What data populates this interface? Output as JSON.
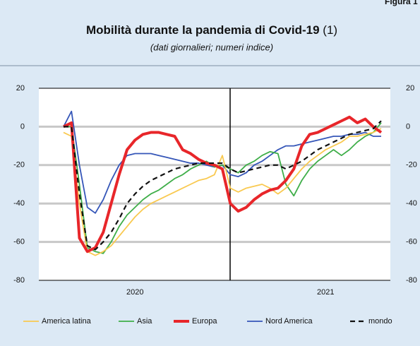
{
  "header": {
    "figure": "Figura 1"
  },
  "chart_data": {
    "type": "line",
    "title": "Mobilità durante la pandemia di Covid-19",
    "title_note": "(1)",
    "subtitle": "(dati giornalieri; numeri indice)",
    "categories": [
      null,
      null,
      null,
      null,
      null,
      null,
      null,
      null,
      null,
      "2020",
      null,
      null,
      null,
      null,
      null,
      null,
      null,
      null,
      null,
      null,
      null,
      null,
      null,
      null,
      null,
      null,
      null,
      null,
      null,
      null,
      null,
      null,
      null,
      "2021",
      null,
      null,
      null,
      null,
      null,
      null,
      null
    ],
    "ylim": [
      -80,
      20
    ],
    "yticks": [
      20,
      0,
      -20,
      -40,
      -60,
      -80
    ],
    "grid": true,
    "series": [
      {
        "name": "America latina",
        "color": "#f9c950",
        "values": [
          -3,
          -5,
          -40,
          -65,
          -67,
          -65,
          -62,
          -57,
          -52,
          -47,
          -43,
          -40,
          -38,
          -36,
          -34,
          -32,
          -30,
          -28,
          -27,
          -25,
          -15,
          -32,
          -34,
          -32,
          -31,
          -30,
          -32,
          -35,
          -32,
          -27,
          -22,
          -18,
          -15,
          -12,
          -10,
          -8,
          -5,
          -5,
          -4,
          -3,
          -1
        ]
      },
      {
        "name": "Asia",
        "color": "#3fae49",
        "values": [
          0,
          0,
          -30,
          -63,
          -65,
          -66,
          -60,
          -52,
          -46,
          -42,
          -38,
          -35,
          -33,
          -30,
          -27,
          -25,
          -22,
          -20,
          -18,
          -21,
          -20,
          -22,
          -24,
          -20,
          -18,
          -15,
          -13,
          -14,
          -30,
          -36,
          -28,
          -22,
          -18,
          -15,
          -12,
          -15,
          -12,
          -8,
          -5,
          -3,
          2
        ]
      },
      {
        "name": "Europa",
        "color": "#e8262a",
        "values": [
          0,
          2,
          -58,
          -65,
          -63,
          -55,
          -40,
          -25,
          -12,
          -7,
          -4,
          -3,
          -3,
          -4,
          -5,
          -12,
          -14,
          -17,
          -19,
          -20,
          -22,
          -40,
          -44,
          -42,
          -38,
          -35,
          -33,
          -32,
          -28,
          -22,
          -10,
          -4,
          -3,
          -1,
          1,
          3,
          5,
          2,
          4,
          0,
          -3
        ]
      },
      {
        "name": "Nord America",
        "color": "#3556b8",
        "values": [
          0,
          8,
          -20,
          -42,
          -45,
          -38,
          -28,
          -20,
          -15,
          -14,
          -14,
          -14,
          -15,
          -16,
          -17,
          -18,
          -19,
          -19,
          -20,
          -21,
          -20,
          -25,
          -26,
          -24,
          -20,
          -18,
          -15,
          -12,
          -10,
          -10,
          -9,
          -8,
          -7,
          -6,
          -5,
          -5,
          -4,
          -4,
          -3,
          -5,
          -5
        ]
      },
      {
        "name": "mondo",
        "color": "#111111",
        "values": [
          0,
          0,
          -35,
          -62,
          -64,
          -60,
          -55,
          -48,
          -40,
          -35,
          -31,
          -28,
          -26,
          -24,
          -22,
          -21,
          -20,
          -19,
          -19,
          -19,
          -19,
          -22,
          -24,
          -23,
          -22,
          -21,
          -20,
          -20,
          -22,
          -20,
          -18,
          -15,
          -12,
          -10,
          -8,
          -6,
          -4,
          -3,
          -2,
          -1,
          3
        ]
      }
    ]
  }
}
